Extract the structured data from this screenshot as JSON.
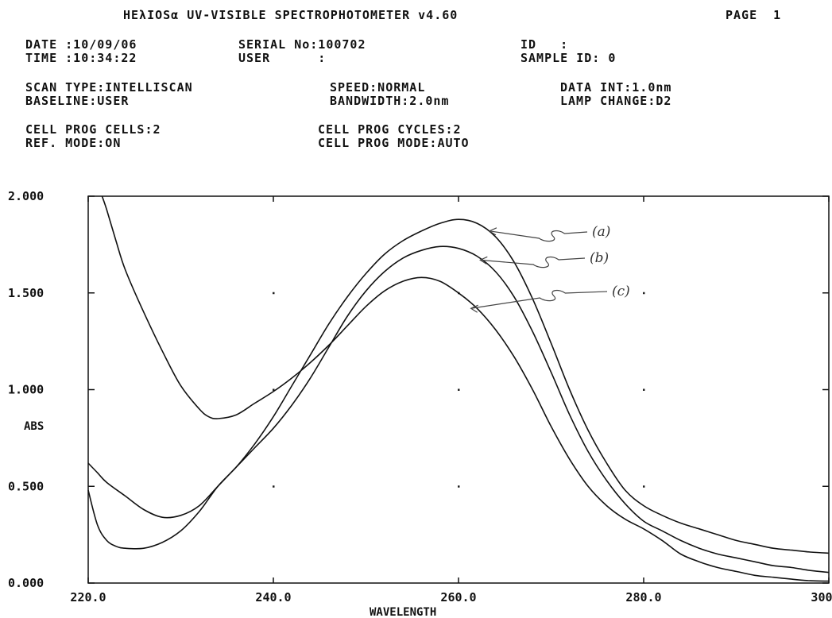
{
  "header": {
    "title": "HEλIOSα UV-VISIBLE SPECTROPHOTOMETER v4.60",
    "page": "PAGE  1",
    "date": "DATE :10/09/06",
    "time": "TIME :10:34:22",
    "serial": "SERIAL No:100702",
    "user": "USER      :",
    "id": "ID   :",
    "sample_id": "SAMPLE ID: 0",
    "scan_type": "SCAN TYPE:INTELLISCAN",
    "speed": "SPEED:NORMAL",
    "data_int": "DATA INT:1.0nm",
    "baseline": "BASELINE:USER",
    "bandwidth": "BANDWIDTH:2.0nm",
    "lamp_change": "LAMP CHANGE:D2",
    "cell_prog_cells": "CELL PROG CELLS:2",
    "cell_prog_cycles": "CELL PROG CYCLES:2",
    "ref_mode": "REF. MODE:ON",
    "cell_prog_mode": "CELL PROG MODE:AUTO"
  },
  "chart_data": {
    "type": "line",
    "title": "",
    "xlabel": "WAVELENGTH",
    "ylabel": "ABS",
    "xlim": [
      220,
      300
    ],
    "ylim": [
      0,
      2
    ],
    "x_ticks": [
      "220.0",
      "240.0",
      "260.0",
      "280.0",
      "300.0"
    ],
    "y_ticks": [
      "0.000",
      "0.500",
      "1.000",
      "1.500",
      "2.000"
    ],
    "grid": "dotted marks",
    "series": [
      {
        "name": "(a)",
        "points": [
          [
            220,
            0.48
          ],
          [
            221,
            0.3
          ],
          [
            222,
            0.22
          ],
          [
            223,
            0.19
          ],
          [
            224,
            0.18
          ],
          [
            226,
            0.18
          ],
          [
            228,
            0.21
          ],
          [
            230,
            0.27
          ],
          [
            232,
            0.37
          ],
          [
            234,
            0.5
          ],
          [
            236,
            0.6
          ],
          [
            238,
            0.72
          ],
          [
            240,
            0.86
          ],
          [
            242,
            1.02
          ],
          [
            244,
            1.18
          ],
          [
            246,
            1.34
          ],
          [
            248,
            1.48
          ],
          [
            250,
            1.6
          ],
          [
            252,
            1.7
          ],
          [
            254,
            1.77
          ],
          [
            256,
            1.82
          ],
          [
            258,
            1.86
          ],
          [
            260,
            1.88
          ],
          [
            262,
            1.86
          ],
          [
            264,
            1.79
          ],
          [
            266,
            1.66
          ],
          [
            268,
            1.47
          ],
          [
            270,
            1.24
          ],
          [
            272,
            1.0
          ],
          [
            274,
            0.79
          ],
          [
            276,
            0.62
          ],
          [
            278,
            0.48
          ],
          [
            280,
            0.4
          ],
          [
            282,
            0.35
          ],
          [
            284,
            0.31
          ],
          [
            286,
            0.28
          ],
          [
            288,
            0.25
          ],
          [
            290,
            0.22
          ],
          [
            292,
            0.2
          ],
          [
            294,
            0.18
          ],
          [
            296,
            0.17
          ],
          [
            298,
            0.16
          ],
          [
            300,
            0.155
          ]
        ]
      },
      {
        "name": "(b)",
        "points": [
          [
            220,
            0.62
          ],
          [
            221,
            0.57
          ],
          [
            222,
            0.52
          ],
          [
            224,
            0.45
          ],
          [
            226,
            0.38
          ],
          [
            228,
            0.34
          ],
          [
            230,
            0.35
          ],
          [
            232,
            0.4
          ],
          [
            234,
            0.5
          ],
          [
            236,
            0.6
          ],
          [
            238,
            0.7
          ],
          [
            240,
            0.8
          ],
          [
            242,
            0.92
          ],
          [
            244,
            1.06
          ],
          [
            246,
            1.22
          ],
          [
            248,
            1.38
          ],
          [
            250,
            1.51
          ],
          [
            252,
            1.61
          ],
          [
            254,
            1.68
          ],
          [
            256,
            1.72
          ],
          [
            258,
            1.74
          ],
          [
            260,
            1.73
          ],
          [
            262,
            1.69
          ],
          [
            264,
            1.61
          ],
          [
            266,
            1.48
          ],
          [
            268,
            1.3
          ],
          [
            270,
            1.09
          ],
          [
            272,
            0.87
          ],
          [
            274,
            0.68
          ],
          [
            276,
            0.53
          ],
          [
            278,
            0.41
          ],
          [
            280,
            0.32
          ],
          [
            282,
            0.27
          ],
          [
            284,
            0.22
          ],
          [
            286,
            0.18
          ],
          [
            288,
            0.15
          ],
          [
            290,
            0.13
          ],
          [
            292,
            0.11
          ],
          [
            294,
            0.09
          ],
          [
            296,
            0.08
          ],
          [
            298,
            0.065
          ],
          [
            300,
            0.055
          ]
        ]
      },
      {
        "name": "(c)",
        "points": [
          [
            221.5,
            2.0
          ],
          [
            222,
            1.93
          ],
          [
            223,
            1.77
          ],
          [
            224,
            1.62
          ],
          [
            226,
            1.4
          ],
          [
            228,
            1.2
          ],
          [
            230,
            1.02
          ],
          [
            232,
            0.9
          ],
          [
            233,
            0.86
          ],
          [
            234,
            0.85
          ],
          [
            236,
            0.87
          ],
          [
            238,
            0.93
          ],
          [
            240,
            0.99
          ],
          [
            242,
            1.06
          ],
          [
            244,
            1.14
          ],
          [
            246,
            1.23
          ],
          [
            248,
            1.33
          ],
          [
            250,
            1.43
          ],
          [
            252,
            1.51
          ],
          [
            254,
            1.56
          ],
          [
            256,
            1.58
          ],
          [
            258,
            1.56
          ],
          [
            260,
            1.5
          ],
          [
            262,
            1.42
          ],
          [
            264,
            1.31
          ],
          [
            266,
            1.17
          ],
          [
            268,
            1.0
          ],
          [
            270,
            0.81
          ],
          [
            272,
            0.64
          ],
          [
            274,
            0.5
          ],
          [
            276,
            0.4
          ],
          [
            278,
            0.33
          ],
          [
            280,
            0.28
          ],
          [
            282,
            0.22
          ],
          [
            284,
            0.15
          ],
          [
            286,
            0.11
          ],
          [
            288,
            0.08
          ],
          [
            290,
            0.06
          ],
          [
            292,
            0.04
          ],
          [
            294,
            0.03
          ],
          [
            296,
            0.02
          ],
          [
            298,
            0.012
          ],
          [
            300,
            0.01
          ]
        ]
      }
    ]
  }
}
